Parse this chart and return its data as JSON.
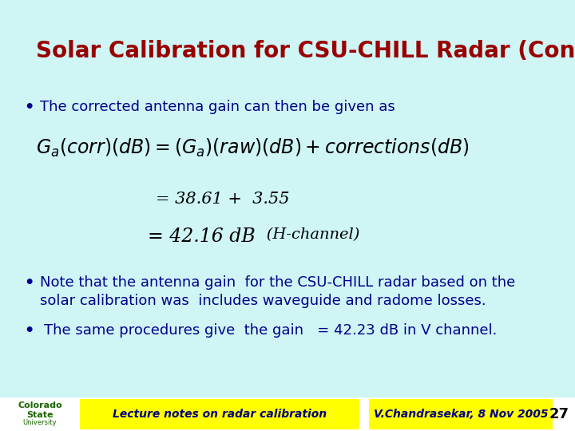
{
  "background_color": "#cff5f5",
  "title": "Solar Calibration for CSU-CHILL Radar (Cont.)",
  "title_color": "#990000",
  "title_fontsize": 20,
  "bullet_color": "#00008b",
  "bullet_fontsize": 13,
  "bullet1": "The corrected antenna gain can then be given as",
  "eq_line1": "= 38.61 +  3.55",
  "eq_line2": "= 42.16 dB",
  "eq_hchannel": "   (H-channel)",
  "bullet2_line1": "Note that the antenna gain  for the CSU-CHILL radar based on the",
  "bullet2_line2": "solar calibration was  includes waveguide and radome losses.",
  "bullet3": "The same procedures give  the gain   = 42.23 dB in V channel.",
  "footer_bg": "#ffff00",
  "footer_left": "Lecture notes on radar calibration",
  "footer_right": "V.Chandrasekar, 8 Nov 2005",
  "footer_page": "27",
  "footer_fontsize": 10,
  "footer_text_color": "#000080"
}
